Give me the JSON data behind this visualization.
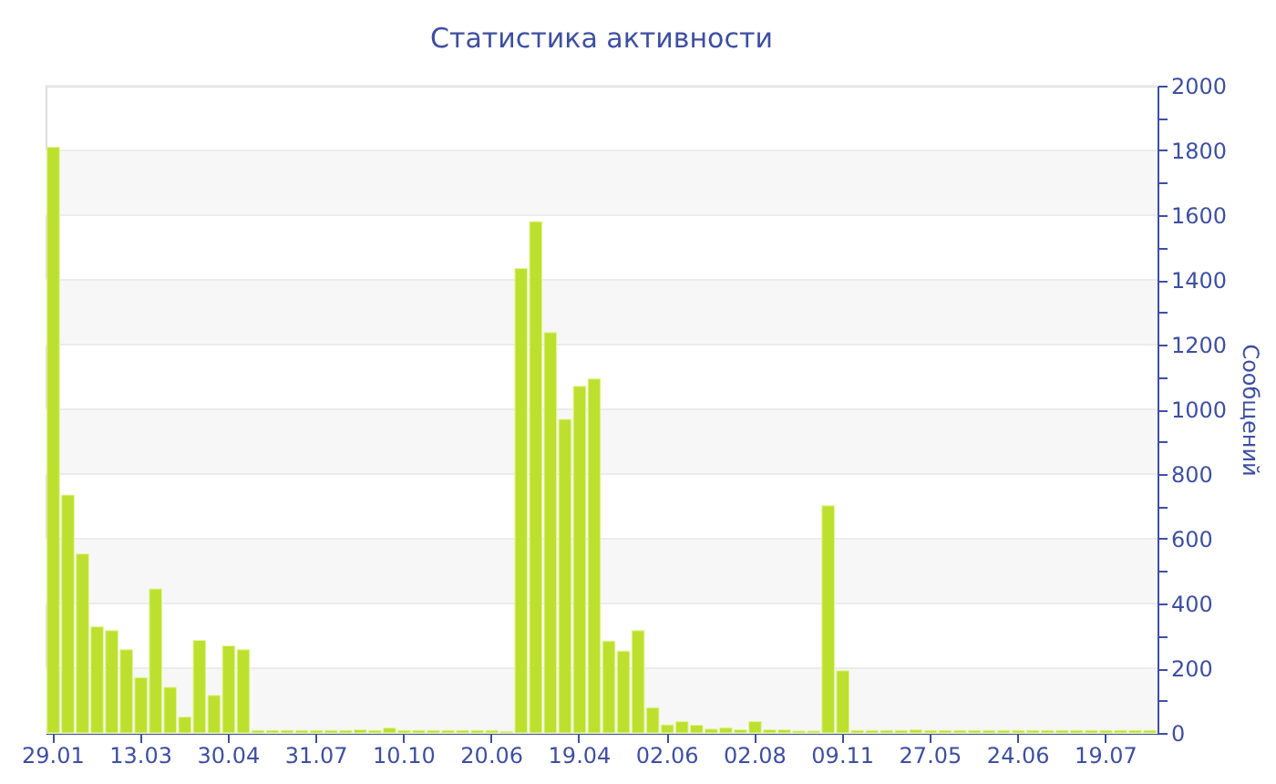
{
  "chart_data": {
    "type": "bar",
    "title": "Статистика активности",
    "ylabel": "Сообщений",
    "categories": [
      "29.01",
      null,
      null,
      null,
      null,
      null,
      "13.03",
      null,
      null,
      null,
      null,
      null,
      "30.04",
      null,
      null,
      null,
      null,
      null,
      "31.07",
      null,
      null,
      null,
      null,
      null,
      "10.10",
      null,
      null,
      null,
      null,
      null,
      "20.06",
      null,
      null,
      null,
      null,
      null,
      "19.04",
      null,
      null,
      null,
      null,
      null,
      "02.06",
      null,
      null,
      null,
      null,
      null,
      "02.08",
      null,
      null,
      null,
      null,
      null,
      "09.11",
      null,
      null,
      null,
      null,
      null,
      "27.05",
      null,
      null,
      null,
      null,
      null,
      "24.06",
      null,
      null,
      null,
      null,
      null,
      "19.07",
      null,
      null,
      null
    ],
    "values": [
      1810,
      735,
      553,
      328,
      316,
      257,
      171,
      445,
      141,
      49,
      286,
      116,
      269,
      257,
      8,
      8,
      8,
      8,
      8,
      8,
      8,
      10,
      8,
      15,
      8,
      8,
      8,
      8,
      8,
      8,
      8,
      5,
      1435,
      1580,
      1237,
      969,
      1071,
      1094,
      284,
      253,
      316,
      78,
      25,
      35,
      24,
      12,
      16,
      10,
      35,
      10,
      10,
      6,
      6,
      702,
      192,
      8,
      8,
      8,
      8,
      10,
      8,
      8,
      8,
      8,
      8,
      8,
      8,
      8,
      8,
      8,
      8,
      8,
      8,
      8,
      8,
      8
    ],
    "color": "#bde02f",
    "ylim": [
      0,
      2000
    ],
    "yticks": [
      0,
      {
        "value": 100,
        "label": null
      },
      200,
      {
        "value": 300,
        "label": null
      },
      400,
      {
        "value": 500,
        "label": null
      },
      600,
      {
        "value": 700,
        "label": null
      },
      800,
      {
        "value": 900,
        "label": null
      },
      1000,
      {
        "value": 1100,
        "label": null
      },
      1200,
      {
        "value": 1300,
        "label": null
      },
      1400,
      {
        "value": 1500,
        "label": null
      },
      1600,
      {
        "value": 1700,
        "label": null
      },
      1800,
      {
        "value": 1900,
        "label": null
      },
      2000
    ],
    "grid": "y"
  }
}
